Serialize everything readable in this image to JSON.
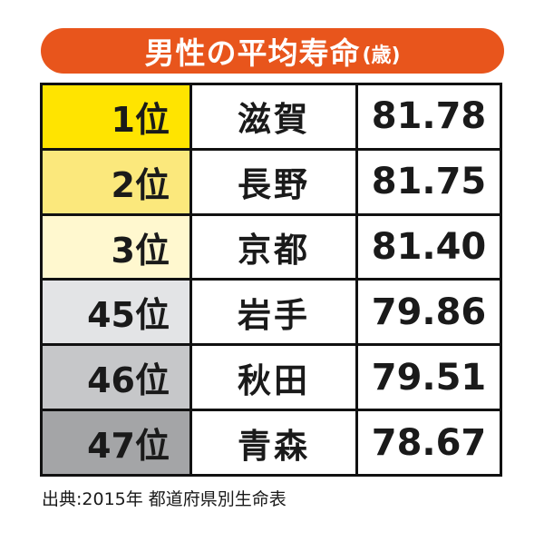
{
  "title": {
    "main": "男性の平均寿命",
    "unit": "(歳)"
  },
  "chart_data": {
    "type": "table",
    "title": "男性の平均寿命(歳)",
    "columns": [
      "rank",
      "prefecture",
      "life_expectancy"
    ],
    "rows": [
      {
        "rank": "1位",
        "prefecture": "滋賀",
        "value": "81.78",
        "highlight": "#ffe400"
      },
      {
        "rank": "2位",
        "prefecture": "長野",
        "value": "81.75",
        "highlight": "#fbe87c"
      },
      {
        "rank": "3位",
        "prefecture": "京都",
        "value": "81.40",
        "highlight": "#fff8cf"
      },
      {
        "rank": "45位",
        "prefecture": "岩手",
        "value": "79.86",
        "highlight": "#e3e4e6"
      },
      {
        "rank": "46位",
        "prefecture": "秋田",
        "value": "79.51",
        "highlight": "#c6c7c9"
      },
      {
        "rank": "47位",
        "prefecture": "青森",
        "value": "78.67",
        "highlight": "#a4a5a7"
      }
    ]
  },
  "source": "出典:2015年 都道府県別生命表",
  "colors": {
    "title_bar": "#e8551c",
    "border": "#111111"
  }
}
